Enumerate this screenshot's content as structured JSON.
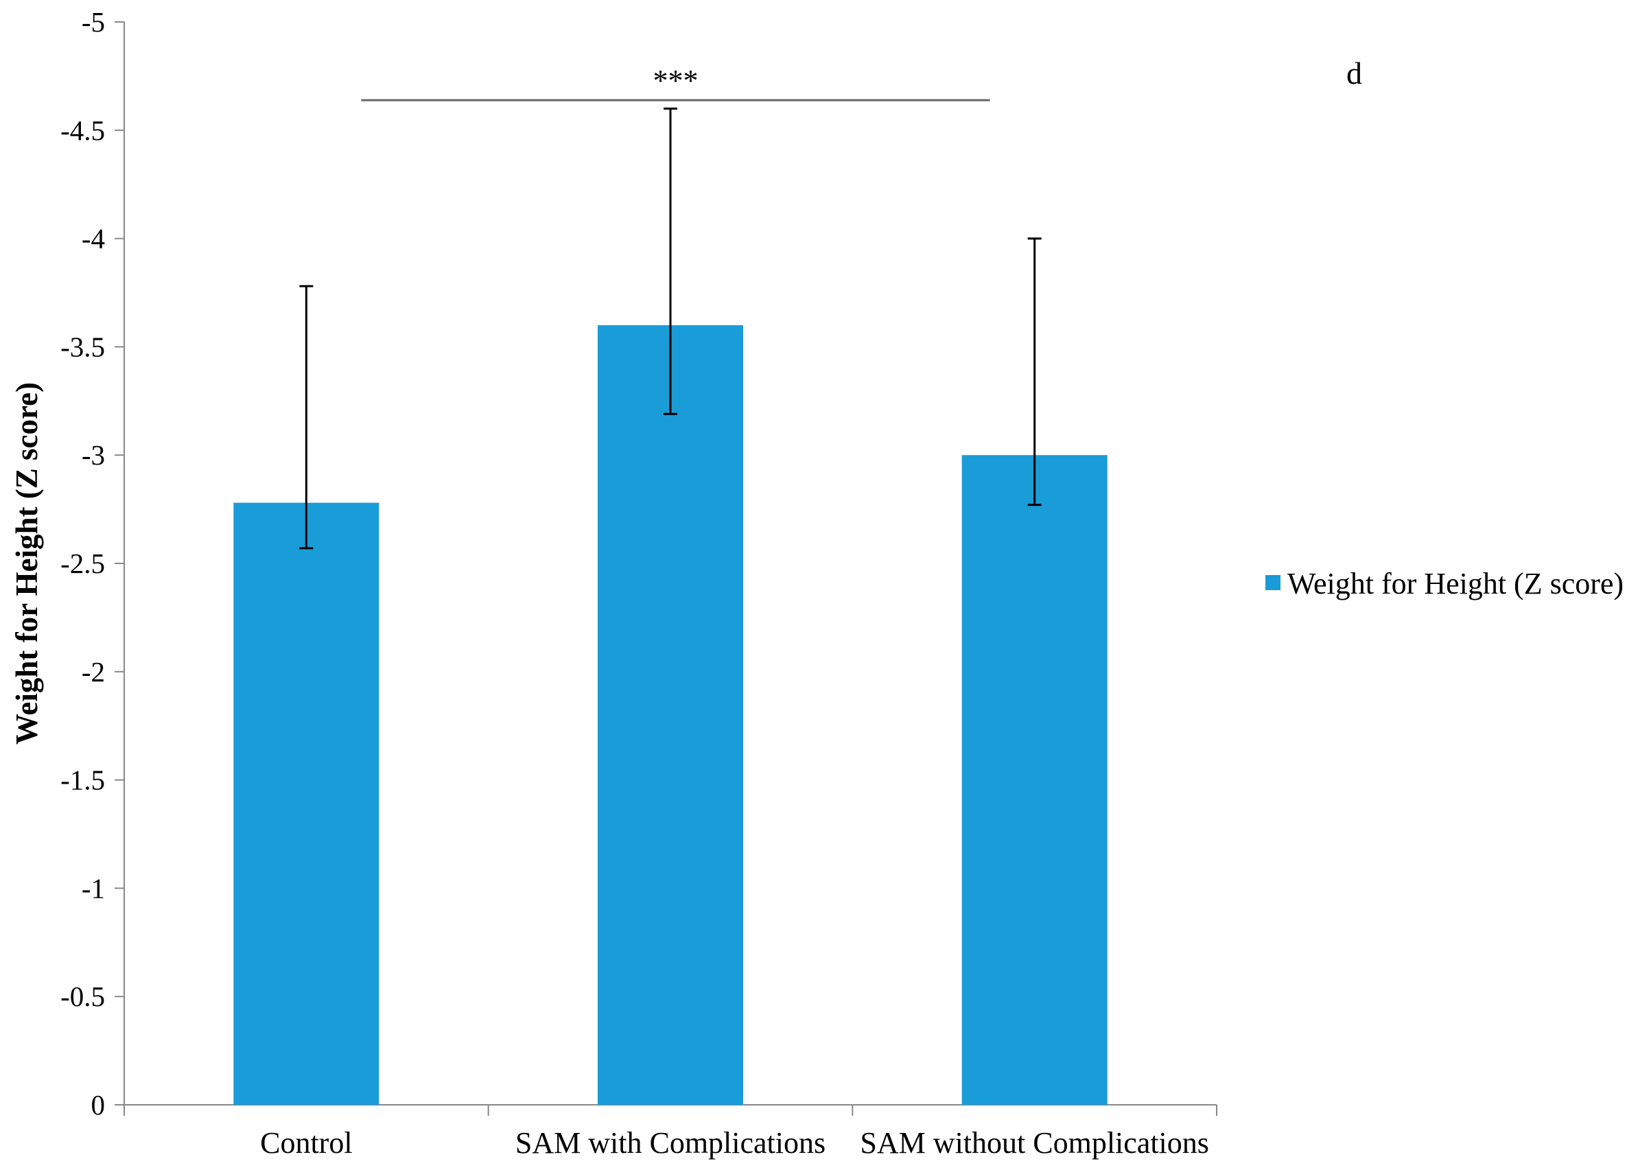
{
  "chart_data": {
    "type": "bar",
    "panel_label": "d",
    "ylabel": "Weight for Height (Z score)",
    "xlabel": "",
    "categories": [
      "Control",
      "SAM with Complications",
      "SAM without Complications"
    ],
    "series": [
      {
        "name": "Weight for Height (Z score)",
        "values": [
          -2.78,
          -3.6,
          -3.0
        ],
        "error_upper": [
          -3.78,
          -4.6,
          -4.0
        ],
        "error_lower": [
          -2.57,
          -3.19,
          -2.77
        ],
        "color": "#1a9cd8"
      }
    ],
    "ylim": [
      0,
      -5
    ],
    "y_axis_inverted": true,
    "yticks": [
      "0",
      "-0.5",
      "-1",
      "-1.5",
      "-2",
      "-2.5",
      "-3",
      "-3.5",
      "-4",
      "-4.5",
      "-5"
    ],
    "ytick_values": [
      0,
      -0.5,
      -1,
      -1.5,
      -2,
      -2.5,
      -3,
      -3.5,
      -4,
      -4.5,
      -5
    ],
    "grid": false,
    "legend_position": "right",
    "significance": {
      "label": "***",
      "from_category": 0,
      "to_category": 2
    },
    "colors": {
      "bar": "#1a9cd8",
      "axis": "#888888",
      "error_bar": "#000000",
      "sig_line": "#666666"
    }
  }
}
